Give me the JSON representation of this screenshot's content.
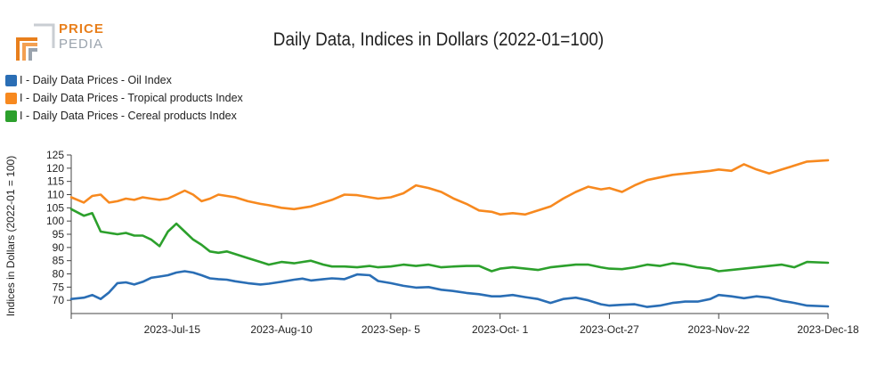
{
  "logo": {
    "line1": "PRICE",
    "line2": "PEDIA"
  },
  "colors": {
    "oil": "#2a6eb5",
    "tropical": "#f7891f",
    "cereal": "#2ca02c",
    "logo_orange": "#e87f1c",
    "logo_grey": "#9aa3ad"
  },
  "chart_data": {
    "type": "line",
    "title": "Daily Data, Indices in Dollars (2022-01=100)",
    "ylabel": "Indices in Dollars (2022-01 = 100)",
    "xlabel": "",
    "ylim": [
      65,
      125
    ],
    "yticks": [
      70,
      75,
      80,
      85,
      90,
      95,
      100,
      105,
      110,
      115,
      120,
      125
    ],
    "x_range": [
      "2023-06-21",
      "2023-12-18"
    ],
    "xticks": [
      {
        "date": "2023-07-15",
        "label": "2023-Jul-15"
      },
      {
        "date": "2023-08-10",
        "label": "2023-Aug-10"
      },
      {
        "date": "2023-09-05",
        "label": "2023-Sep- 5"
      },
      {
        "date": "2023-10-01",
        "label": "2023-Oct- 1"
      },
      {
        "date": "2023-10-27",
        "label": "2023-Oct-27"
      },
      {
        "date": "2023-11-22",
        "label": "2023-Nov-22"
      },
      {
        "date": "2023-12-18",
        "label": "2023-Dec-18"
      }
    ],
    "legend_position": "top-left",
    "grid": false,
    "x": [
      "2023-06-21",
      "2023-06-24",
      "2023-06-26",
      "2023-06-28",
      "2023-06-30",
      "2023-07-02",
      "2023-07-04",
      "2023-07-06",
      "2023-07-08",
      "2023-07-10",
      "2023-07-12",
      "2023-07-14",
      "2023-07-16",
      "2023-07-18",
      "2023-07-20",
      "2023-07-22",
      "2023-07-24",
      "2023-07-26",
      "2023-07-28",
      "2023-07-30",
      "2023-08-02",
      "2023-08-05",
      "2023-08-07",
      "2023-08-10",
      "2023-08-13",
      "2023-08-15",
      "2023-08-17",
      "2023-08-20",
      "2023-08-22",
      "2023-08-25",
      "2023-08-28",
      "2023-08-31",
      "2023-09-02",
      "2023-09-05",
      "2023-09-08",
      "2023-09-11",
      "2023-09-14",
      "2023-09-17",
      "2023-09-20",
      "2023-09-23",
      "2023-09-26",
      "2023-09-29",
      "2023-10-01",
      "2023-10-04",
      "2023-10-07",
      "2023-10-10",
      "2023-10-13",
      "2023-10-16",
      "2023-10-19",
      "2023-10-22",
      "2023-10-25",
      "2023-10-27",
      "2023-10-30",
      "2023-11-02",
      "2023-11-05",
      "2023-11-08",
      "2023-11-11",
      "2023-11-14",
      "2023-11-17",
      "2023-11-20",
      "2023-11-22",
      "2023-11-25",
      "2023-11-28",
      "2023-12-01",
      "2023-12-04",
      "2023-12-07",
      "2023-12-10",
      "2023-12-13",
      "2023-12-18"
    ],
    "series": [
      {
        "name": "I - Daily Data Prices - Oil Index",
        "values": [
          70.5,
          71.0,
          72.0,
          70.5,
          73.0,
          76.5,
          76.8,
          76.0,
          77.0,
          78.5,
          79.0,
          79.5,
          80.5,
          81.0,
          80.5,
          79.5,
          78.3,
          78.0,
          77.8,
          77.2,
          76.5,
          76.0,
          76.3,
          77.0,
          77.8,
          78.2,
          77.5,
          78.0,
          78.3,
          78.0,
          79.8,
          79.5,
          77.3,
          76.5,
          75.5,
          74.8,
          75.0,
          74.0,
          73.5,
          72.8,
          72.3,
          71.5,
          71.5,
          72.0,
          71.2,
          70.5,
          69.0,
          70.5,
          71.0,
          70.0,
          68.5,
          68.0,
          68.3,
          68.5,
          67.5,
          68.0,
          69.0,
          69.5,
          69.5,
          70.5,
          72.0,
          71.5,
          70.8,
          71.5,
          71.0,
          69.8,
          69.0,
          68.0,
          67.7
        ]
      },
      {
        "name": "I - Daily Data Prices - Tropical products Index",
        "values": [
          109.0,
          107.0,
          109.5,
          110.0,
          107.0,
          107.5,
          108.5,
          108.0,
          109.0,
          108.5,
          108.0,
          108.5,
          110.0,
          111.5,
          110.0,
          107.5,
          108.5,
          110.0,
          109.5,
          109.0,
          107.5,
          106.5,
          106.0,
          105.0,
          104.5,
          105.0,
          105.5,
          107.0,
          108.0,
          110.0,
          109.8,
          109.0,
          108.5,
          109.0,
          110.5,
          113.5,
          112.5,
          111.0,
          108.5,
          106.5,
          104.0,
          103.5,
          102.5,
          103.0,
          102.5,
          104.0,
          105.5,
          108.5,
          111.0,
          113.0,
          112.0,
          112.5,
          111.0,
          113.5,
          115.5,
          116.5,
          117.5,
          118.0,
          118.5,
          119.0,
          119.5,
          119.0,
          121.5,
          119.5,
          118.0,
          119.5,
          121.0,
          122.5,
          123.0
        ]
      },
      {
        "name": "I - Daily Data Prices - Cereal products Index",
        "values": [
          104.5,
          102.0,
          103.0,
          96.0,
          95.5,
          95.0,
          95.5,
          94.5,
          94.5,
          93.0,
          90.5,
          96.0,
          99.0,
          96.0,
          93.0,
          91.0,
          88.5,
          88.0,
          88.5,
          87.5,
          86.0,
          84.5,
          83.5,
          84.5,
          84.0,
          84.5,
          85.0,
          83.5,
          82.8,
          82.8,
          82.5,
          83.0,
          82.5,
          82.8,
          83.5,
          83.0,
          83.5,
          82.5,
          82.8,
          83.0,
          83.0,
          81.0,
          82.0,
          82.5,
          82.0,
          81.5,
          82.5,
          83.0,
          83.5,
          83.5,
          82.5,
          82.0,
          81.8,
          82.5,
          83.5,
          83.0,
          84.0,
          83.5,
          82.5,
          82.0,
          81.0,
          81.5,
          82.0,
          82.5,
          83.0,
          83.5,
          82.5,
          84.5,
          84.2
        ]
      }
    ]
  }
}
